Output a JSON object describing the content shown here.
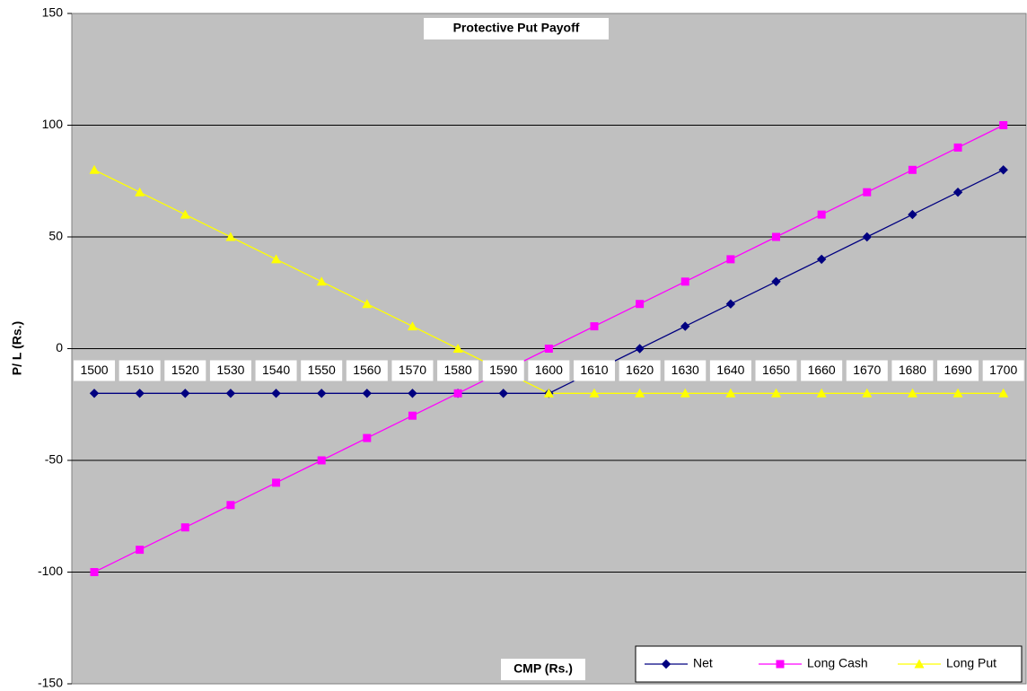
{
  "chart_data": {
    "type": "line",
    "title": "Protective Put Payoff",
    "x_label": "CMP (Rs.)",
    "y_label": "P/ L (Rs.)",
    "categories": [
      "1500",
      "1510",
      "1520",
      "1530",
      "1540",
      "1550",
      "1560",
      "1570",
      "1580",
      "1590",
      "1600",
      "1610",
      "1620",
      "1630",
      "1640",
      "1650",
      "1660",
      "1670",
      "1680",
      "1690",
      "1700"
    ],
    "series": [
      {
        "name": "Net",
        "color": "#000080",
        "marker": "diamond",
        "values": [
          -20,
          -20,
          -20,
          -20,
          -20,
          -20,
          -20,
          -20,
          -20,
          -20,
          -20,
          -10,
          0,
          10,
          20,
          30,
          40,
          50,
          60,
          70,
          80
        ]
      },
      {
        "name": "Long Cash",
        "color": "#ff00ff",
        "marker": "square",
        "values": [
          -100,
          -90,
          -80,
          -70,
          -60,
          -50,
          -40,
          -30,
          -20,
          -10,
          0,
          10,
          20,
          30,
          40,
          50,
          60,
          70,
          80,
          90,
          100
        ]
      },
      {
        "name": "Long Put",
        "color": "#ffff00",
        "marker": "triangle",
        "values": [
          80,
          70,
          60,
          50,
          40,
          30,
          20,
          10,
          0,
          -10,
          -20,
          -20,
          -20,
          -20,
          -20,
          -20,
          -20,
          -20,
          -20,
          -20,
          -20
        ]
      }
    ],
    "ylim": [
      -150,
      150
    ],
    "yticks": [
      -150,
      -100,
      -50,
      0,
      50,
      100,
      150
    ],
    "grid": true,
    "background": "#c0c0c0",
    "legend": "lower right"
  }
}
